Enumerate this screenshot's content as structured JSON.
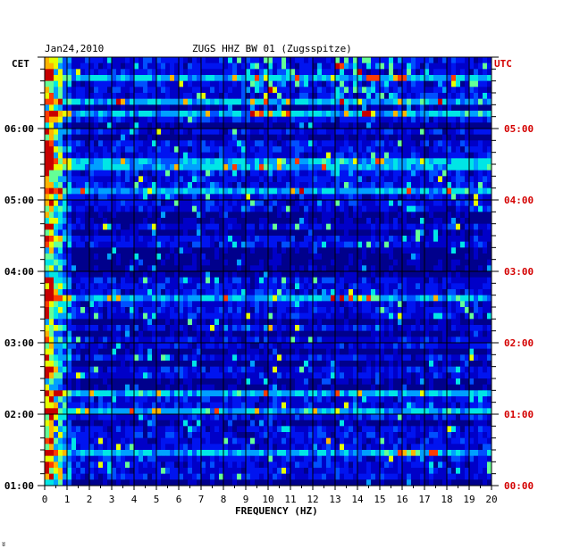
{
  "chart_data": {
    "type": "heatmap",
    "date_label": "Jan24,2010",
    "title": "ZUGS HHZ BW 01 (Zugsspitze)",
    "left_axis_label": "CET",
    "right_axis_label": "UTC",
    "xlabel": "FREQUENCY (HZ)",
    "xlim": [
      0,
      20
    ],
    "x_ticks": [
      "0",
      "1",
      "2",
      "3",
      "4",
      "5",
      "6",
      "7",
      "8",
      "9",
      "10",
      "11",
      "12",
      "13",
      "14",
      "15",
      "16",
      "17",
      "18",
      "19",
      "20"
    ],
    "time_range_utc": [
      "00:00",
      "06:00"
    ],
    "left_ticks": [
      {
        "label": "06:00",
        "hours_from_top": 1
      },
      {
        "label": "05:00",
        "hours_from_top": 2
      },
      {
        "label": "04:00",
        "hours_from_top": 3
      },
      {
        "label": "03:00",
        "hours_from_top": 4
      },
      {
        "label": "02:00",
        "hours_from_top": 5
      },
      {
        "label": "01:00",
        "hours_from_top": 6
      }
    ],
    "right_ticks": [
      {
        "label": "05:00",
        "hours_from_top": 1
      },
      {
        "label": "04:00",
        "hours_from_top": 2
      },
      {
        "label": "03:00",
        "hours_from_top": 3
      },
      {
        "label": "02:00",
        "hours_from_top": 4
      },
      {
        "label": "01:00",
        "hours_from_top": 5
      },
      {
        "label": "00:00",
        "hours_from_top": 6
      }
    ],
    "rows": 72,
    "grid": true,
    "colormap": [
      "#00008c",
      "#0000c8",
      "#0014f0",
      "#0050ff",
      "#00a0ff",
      "#00e6e6",
      "#64ff96",
      "#e6ff00",
      "#ffb400",
      "#ff3c00",
      "#c80000"
    ],
    "colors": {
      "background": "#0000c8",
      "grid": "#000000",
      "utc_text": "#d40000",
      "cet_text": "#000000"
    }
  },
  "footer_mark": "ʬ"
}
